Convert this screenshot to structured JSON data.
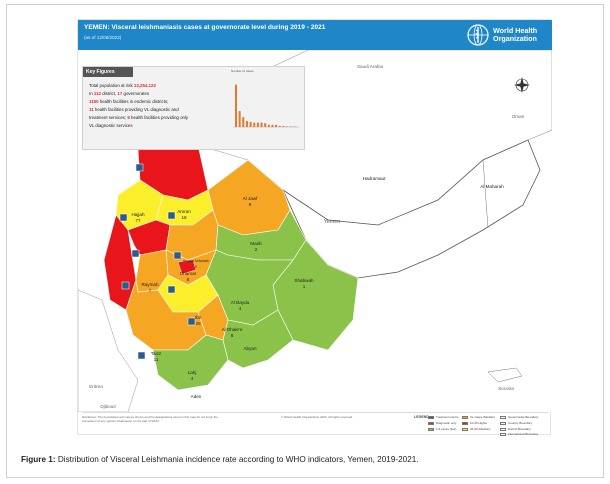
{
  "map": {
    "title": "YEMEN: Visceral leishmaniasis cases at governorate level during 2019 - 2021",
    "date": "(as of 12/06/2022)",
    "organization": "World Health Organization",
    "organization_line1": "World Health",
    "organization_line2": "Organization",
    "key_figures": {
      "title": "Key Figures",
      "line1_prefix": "Total population at risk",
      "line1_value": "13,254,122",
      "line2_a": "In",
      "line2_b": "112",
      "line2_c": "district,",
      "line2_d": "17",
      "line2_e": "governorates",
      "line3_value": "1150",
      "line3_text": "health facilities in endemic districts;",
      "line4_value": "11",
      "line4_text": "health facilities providing VL diagnostic and",
      "line5_text": "treatment services;",
      "line5_value": "6",
      "line5_text2": "health facilities providing only",
      "line6_text": "VL diagnostic services",
      "chart_title": "Number of cases"
    },
    "regions": [
      {
        "name": "Saudi Arabia",
        "value": ""
      },
      {
        "name": "Oman",
        "value": ""
      },
      {
        "name": "Yemen",
        "value": ""
      },
      {
        "name": "Al Jawf",
        "value": "9"
      },
      {
        "name": "Amran",
        "value": "18"
      },
      {
        "name": "Hajjah",
        "value": "77"
      },
      {
        "name": "Marib",
        "value": "2"
      },
      {
        "name": "Amanat Al Asimah",
        "value": "8"
      },
      {
        "name": "Dhamar",
        "value": "8"
      },
      {
        "name": "Shabwah",
        "value": "1"
      },
      {
        "name": "Hadramaut",
        "value": ""
      },
      {
        "name": "Al Maharah",
        "value": ""
      },
      {
        "name": "Al Bayda",
        "value": "4"
      },
      {
        "name": "Raymah",
        "value": "7"
      },
      {
        "name": "Ibb",
        "value": "29"
      },
      {
        "name": "Al Dhale'e",
        "value": "8"
      },
      {
        "name": "Taizz",
        "value": "11"
      },
      {
        "name": "Lahj",
        "value": "4"
      },
      {
        "name": "Abyan",
        "value": ""
      },
      {
        "name": "Aden",
        "value": ""
      },
      {
        "name": "Eritrea",
        "value": ""
      },
      {
        "name": "Socotra",
        "value": ""
      },
      {
        "name": "Djibouti",
        "value": ""
      }
    ],
    "colors": {
      "red": "#e8151b",
      "orange": "#f5a623",
      "yellow": "#fbee2b",
      "green": "#8bc34a",
      "white": "#ffffff",
      "title_bar": "#1f86c8"
    },
    "footer_left": "Disclaimer: The boundaries and names shown and the designations used on this map do not imply the expression of any opinion whatsoever on the part of WHO.",
    "footer_mid": "© World Health Organization 2022. All rights reserved.",
    "legend_title": "LEGEND",
    "legend_items": [
      "Treatment centre",
      "Diagnostic only",
      "VL cases (Median)",
      "10-25 Higher",
      "1-9 cases (low)",
      "26-60 (Median)",
      "Governorate Boundary",
      "Country Boundary",
      "District Boundary",
      "International Boundary"
    ]
  },
  "caption": {
    "label": "Figure 1:",
    "text": " Distribution of Visceral Leishmania incidence rate according to WHO indicators, Yemen, 2019-2021."
  },
  "chart_data": {
    "type": "bar",
    "title": "Number of cases",
    "categories": [
      "1",
      "2",
      "3",
      "4",
      "5",
      "6",
      "7",
      "8",
      "9",
      "10",
      "11",
      "12",
      "13",
      "14",
      "15",
      "16",
      "17"
    ],
    "values": [
      77,
      29,
      18,
      11,
      9,
      8,
      8,
      8,
      7,
      4,
      4,
      4,
      2,
      2,
      1,
      1,
      1
    ],
    "ylim": [
      0,
      80
    ],
    "color": "#e07a2e"
  }
}
